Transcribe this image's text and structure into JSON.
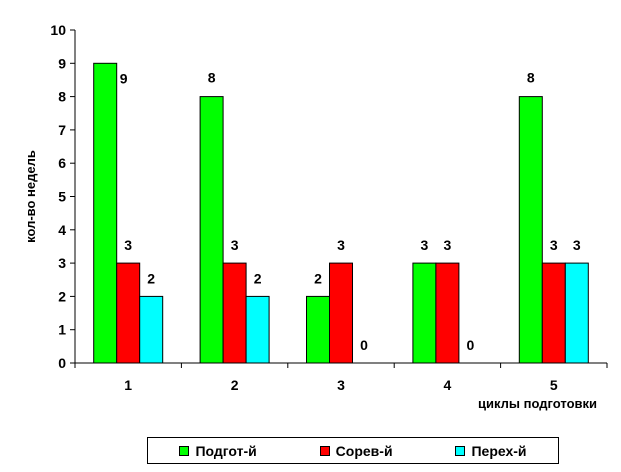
{
  "chart_data": {
    "type": "bar",
    "categories": [
      "1",
      "2",
      "3",
      "4",
      "5"
    ],
    "series": [
      {
        "name": "Подгот-й",
        "color": "#00ff00",
        "values": [
          9,
          8,
          2,
          3,
          8
        ]
      },
      {
        "name": "Сорев-й",
        "color": "#ff0000",
        "values": [
          3,
          3,
          3,
          3,
          3
        ]
      },
      {
        "name": "Перех-й",
        "color": "#00ffff",
        "values": [
          2,
          2,
          0,
          0,
          3
        ]
      }
    ],
    "title": "",
    "xlabel": "циклы подготовки",
    "ylabel": "кол-во недель",
    "ylim": [
      0,
      10
    ],
    "yticks": [
      "0",
      "1",
      "2",
      "3",
      "4",
      "5",
      "6",
      "7",
      "8",
      "9",
      "10"
    ],
    "grid": false,
    "legend_position": "bottom"
  }
}
